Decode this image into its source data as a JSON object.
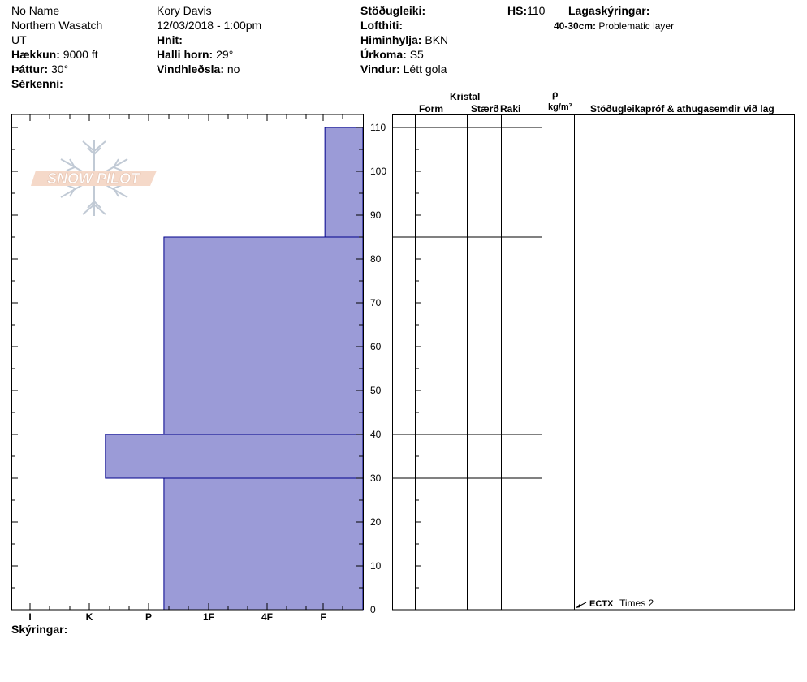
{
  "header": {
    "col1": {
      "name": "No Name",
      "range": "Northern Wasatch",
      "state": "UT",
      "elevation_label": "Hækkun:",
      "elevation_value": "9000 ft",
      "aspect_label": "Þáttur:",
      "aspect_value": "30°",
      "features_label": "Sérkenni:"
    },
    "col2": {
      "observer": "Kory Davis",
      "datetime": "12/03/2018 - 1:00pm",
      "coords_label": "Hnit:",
      "slope_label": "Halli horn:",
      "slope_value": "29°",
      "wind_loading_label": "Vindhleðsla:",
      "wind_loading_value": "no"
    },
    "col3": {
      "stability_label": "Stöðugleiki:",
      "airtemp_label": "Lofthiti:",
      "sky_label": "Himinhylja:",
      "sky_value": "BKN",
      "precip_label": "Úrkoma:",
      "precip_value": "S5",
      "wind_label": "Vindur:",
      "wind_value": "Létt gola"
    },
    "col4": {
      "hs_label": "HS:",
      "hs_value": "110",
      "layer_notes_label": "Lagaskýringar:",
      "layer_note_range": "40-30cm:",
      "layer_note_text": "Problematic layer"
    }
  },
  "logo": {
    "text": "SNOW PILOT"
  },
  "table": {
    "crystal_label": "Kristal",
    "form_label": "Form",
    "size_label": "Stærð",
    "moisture_label": "Raki",
    "rho_label": "ρ",
    "density_unit_label": "kg/m³",
    "tests_label": "Stöðugleikapróf & athugasemdir við lag"
  },
  "test_result": {
    "code": "ECTX",
    "text": "Times 2"
  },
  "footer": {
    "legend_label": "Skýringar:"
  },
  "colors": {
    "hardness_fill": "#9b9bd7",
    "hardness_stroke": "#00008b"
  },
  "chart_data": {
    "type": "bar",
    "orientation": "horizontal-profile",
    "hardness_scale": [
      "I",
      "K",
      "P",
      "1F",
      "4F",
      "F"
    ],
    "x_tick_labels": [
      "I",
      "K",
      "P",
      "1F",
      "4F",
      "F"
    ],
    "y_ticks": [
      0,
      10,
      20,
      30,
      40,
      50,
      60,
      70,
      80,
      90,
      100,
      110
    ],
    "ylim": [
      0,
      110
    ],
    "layers": [
      {
        "top": 110,
        "bottom": 85,
        "hardness": "F",
        "hardness_value": 0.65
      },
      {
        "top": 85,
        "bottom": 40,
        "hardness": "1F",
        "hardness_value": 3.4
      },
      {
        "top": 40,
        "bottom": 30,
        "hardness": "P",
        "hardness_value": 4.4
      },
      {
        "top": 30,
        "bottom": 0,
        "hardness": "1F",
        "hardness_value": 3.4
      }
    ],
    "layer_boundaries": [
      110,
      85,
      40,
      30
    ],
    "test_depth": 0
  }
}
